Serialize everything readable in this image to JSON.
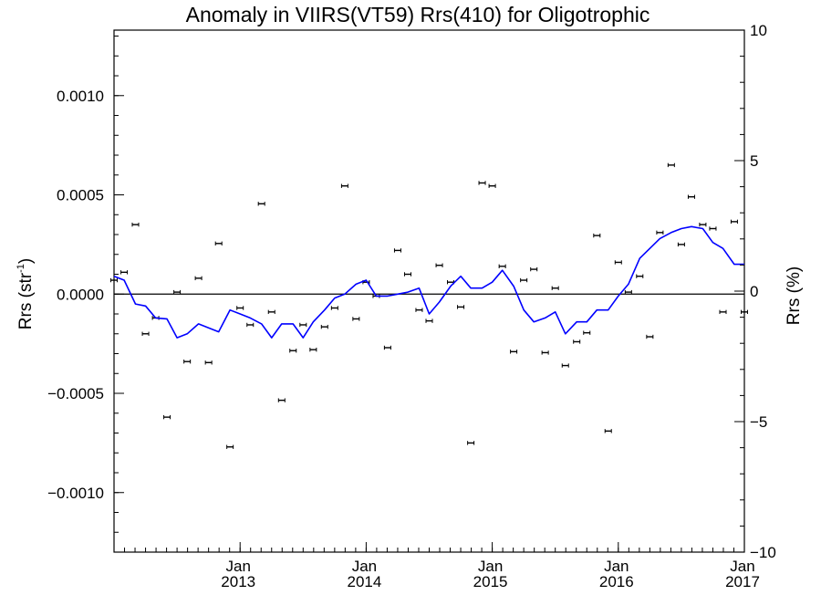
{
  "chart_data": {
    "type": "scatter",
    "title": "Anomaly in VIIRS(VT59) Rrs(410) for Oligotrophic",
    "ylabel_left_main": "Rrs (str",
    "ylabel_left_sup": "-1",
    "ylabel_left_close": ")",
    "ylabel_right": "Rrs (%)",
    "xlim": [
      2012.0,
      2017.0
    ],
    "ylim_left": [
      -0.0013,
      0.00133
    ],
    "ylim_right": [
      -10,
      10
    ],
    "x_ticks": [
      {
        "x": 2013.0,
        "month": "Jan",
        "year": "2013"
      },
      {
        "x": 2014.0,
        "month": "Jan",
        "year": "2014"
      },
      {
        "x": 2015.0,
        "month": "Jan",
        "year": "2015"
      },
      {
        "x": 2016.0,
        "month": "Jan",
        "year": "2016"
      },
      {
        "x": 2017.0,
        "month": "Jan",
        "year": "2017"
      }
    ],
    "y_ticks_left": [
      {
        "value": 0.001,
        "label": "0.0010"
      },
      {
        "value": 0.0005,
        "label": "0.0005"
      },
      {
        "value": 0.0,
        "label": "0.0000"
      },
      {
        "value": -0.0005,
        "label": "−0.0005"
      },
      {
        "value": -0.001,
        "label": "−0.0010"
      }
    ],
    "y_ticks_right": [
      {
        "value": 10,
        "label": "10"
      },
      {
        "value": 5,
        "label": "5"
      },
      {
        "value": 0,
        "label": "0"
      },
      {
        "value": -5,
        "label": "−5"
      },
      {
        "value": -10,
        "label": "−10"
      }
    ],
    "zero_line": true,
    "series": [
      {
        "kind": "points",
        "color": "#000000",
        "x": [
          2012.0,
          2012.08,
          2012.17,
          2012.25,
          2012.33,
          2012.42,
          2012.5,
          2012.58,
          2012.67,
          2012.75,
          2012.83,
          2012.92,
          2013.0,
          2013.08,
          2013.17,
          2013.25,
          2013.33,
          2013.42,
          2013.5,
          2013.58,
          2013.67,
          2013.75,
          2013.83,
          2013.92,
          2014.0,
          2014.08,
          2014.17,
          2014.25,
          2014.33,
          2014.42,
          2014.5,
          2014.58,
          2014.67,
          2014.75,
          2014.83,
          2014.92,
          2015.0,
          2015.08,
          2015.17,
          2015.25,
          2015.33,
          2015.42,
          2015.5,
          2015.58,
          2015.67,
          2015.75,
          2015.83,
          2015.92,
          2016.0,
          2016.08,
          2016.17,
          2016.25,
          2016.33,
          2016.42,
          2016.5,
          2016.58,
          2016.67,
          2016.75,
          2016.83,
          2016.92,
          2017.0
        ],
        "y": [
          7e-05,
          0.00011,
          0.00035,
          -0.0002,
          -0.00012,
          -0.00062,
          1e-05,
          -0.00034,
          8e-05,
          -0.000345,
          0.000255,
          -0.00077,
          -7e-05,
          -0.000155,
          0.000455,
          -9e-05,
          -0.000535,
          -0.000285,
          -0.000155,
          -0.00028,
          -0.000165,
          -7e-05,
          0.000545,
          -0.000125,
          6e-05,
          -1e-05,
          -0.00027,
          0.00022,
          0.0001,
          -8e-05,
          -0.000135,
          0.000145,
          6e-05,
          -6.5e-05,
          -0.00075,
          0.00056,
          0.000545,
          0.00014,
          -0.00029,
          7e-05,
          0.000125,
          -0.000295,
          3e-05,
          -0.00036,
          -0.00024,
          -0.000195,
          0.000295,
          -0.00069,
          0.00016,
          1e-05,
          9e-05,
          -0.000215,
          0.00031,
          0.00065,
          0.00025,
          0.00049,
          0.00035,
          0.00033,
          -9e-05,
          0.000365,
          -9e-05
        ]
      },
      {
        "kind": "line",
        "color": "#0000ff",
        "x": [
          2012.0,
          2012.08,
          2012.17,
          2012.25,
          2012.33,
          2012.42,
          2012.5,
          2012.58,
          2012.67,
          2012.75,
          2012.83,
          2012.92,
          2013.0,
          2013.08,
          2013.17,
          2013.25,
          2013.33,
          2013.42,
          2013.5,
          2013.58,
          2013.67,
          2013.75,
          2013.83,
          2013.92,
          2014.0,
          2014.08,
          2014.17,
          2014.25,
          2014.33,
          2014.42,
          2014.5,
          2014.58,
          2014.67,
          2014.75,
          2014.83,
          2014.92,
          2015.0,
          2015.08,
          2015.17,
          2015.25,
          2015.33,
          2015.42,
          2015.5,
          2015.58,
          2015.67,
          2015.75,
          2015.83,
          2015.92,
          2016.0,
          2016.08,
          2016.17,
          2016.25,
          2016.33,
          2016.42,
          2016.5,
          2016.58,
          2016.67,
          2016.75,
          2016.83,
          2016.92,
          2017.0
        ],
        "y": [
          9e-05,
          7e-05,
          -5e-05,
          -6e-05,
          -0.00012,
          -0.000125,
          -0.00022,
          -0.0002,
          -0.00015,
          -0.00017,
          -0.00019,
          -8e-05,
          -0.0001,
          -0.00012,
          -0.00015,
          -0.00022,
          -0.00015,
          -0.00015,
          -0.00022,
          -0.00014,
          -8e-05,
          -2e-05,
          0.0,
          5e-05,
          7e-05,
          -1e-05,
          -1e-05,
          0.0,
          1e-05,
          3e-05,
          -0.0001,
          -4e-05,
          4e-05,
          9e-05,
          3e-05,
          3e-05,
          6e-05,
          0.00012,
          4e-05,
          -8e-05,
          -0.00014,
          -0.00012,
          -9e-05,
          -0.0002,
          -0.00014,
          -0.00014,
          -8e-05,
          -8e-05,
          -1e-05,
          5e-05,
          0.00018,
          0.00023,
          0.00028,
          0.00031,
          0.00033,
          0.00034,
          0.00033,
          0.00026,
          0.00023,
          0.00015,
          0.00015
        ]
      }
    ]
  }
}
